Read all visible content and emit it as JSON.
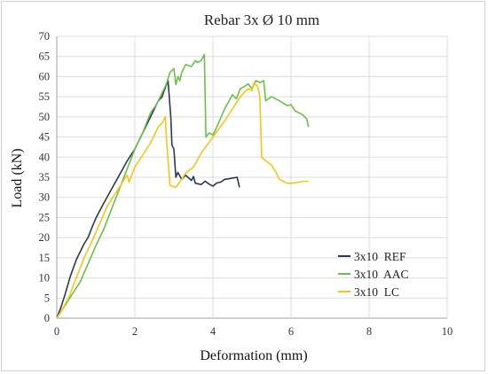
{
  "chart_data": {
    "type": "line",
    "title": "Rebar 3x Ø 10 mm",
    "xlabel": "Deformation (mm)",
    "ylabel": "Load (kN)",
    "xlim": [
      0,
      10
    ],
    "ylim": [
      0,
      70
    ],
    "xticks": [
      0,
      2,
      4,
      6,
      8,
      10
    ],
    "yticks": [
      0,
      5,
      10,
      15,
      20,
      25,
      30,
      35,
      40,
      45,
      50,
      55,
      60,
      65,
      70
    ],
    "grid": true,
    "legend": "bottom-right",
    "series": [
      {
        "name": "3x10  REF",
        "color": "#2b3a4f",
        "points": [
          [
            0,
            0
          ],
          [
            0.1,
            2.5
          ],
          [
            0.2,
            5.5
          ],
          [
            0.35,
            10.5
          ],
          [
            0.5,
            14.5
          ],
          [
            0.7,
            18.5
          ],
          [
            0.8,
            20
          ],
          [
            0.9,
            22.5
          ],
          [
            1.0,
            24.8
          ],
          [
            1.2,
            28.5
          ],
          [
            1.4,
            32
          ],
          [
            1.6,
            35.5
          ],
          [
            1.8,
            39
          ],
          [
            2.0,
            42
          ],
          [
            2.2,
            46
          ],
          [
            2.4,
            50
          ],
          [
            2.5,
            52
          ],
          [
            2.6,
            54
          ],
          [
            2.7,
            55
          ],
          [
            2.75,
            56.5
          ],
          [
            2.85,
            59
          ],
          [
            2.92,
            50
          ],
          [
            2.95,
            43
          ],
          [
            3.0,
            42
          ],
          [
            3.05,
            35
          ],
          [
            3.1,
            36.2
          ],
          [
            3.2,
            34.5
          ],
          [
            3.3,
            35.5
          ],
          [
            3.45,
            34.2
          ],
          [
            3.5,
            35.2
          ],
          [
            3.55,
            33.5
          ],
          [
            3.7,
            33.2
          ],
          [
            3.8,
            34
          ],
          [
            3.9,
            33.3
          ],
          [
            4.0,
            32.8
          ],
          [
            4.1,
            33.6
          ],
          [
            4.2,
            33.8
          ],
          [
            4.3,
            34.5
          ],
          [
            4.4,
            34.6
          ],
          [
            4.5,
            34.8
          ],
          [
            4.62,
            35
          ],
          [
            4.68,
            32.5
          ]
        ]
      },
      {
        "name": "3x10  AAC",
        "color": "#6cc04a",
        "points": [
          [
            0,
            0
          ],
          [
            0.2,
            3
          ],
          [
            0.4,
            6
          ],
          [
            0.6,
            9
          ],
          [
            0.8,
            13.5
          ],
          [
            1.0,
            18
          ],
          [
            1.2,
            22
          ],
          [
            1.4,
            27
          ],
          [
            1.6,
            32
          ],
          [
            1.8,
            37
          ],
          [
            2.0,
            42
          ],
          [
            2.2,
            46
          ],
          [
            2.4,
            51
          ],
          [
            2.55,
            53
          ],
          [
            2.7,
            56
          ],
          [
            2.8,
            58
          ],
          [
            2.9,
            61
          ],
          [
            3.0,
            62
          ],
          [
            3.05,
            58
          ],
          [
            3.1,
            60
          ],
          [
            3.15,
            59
          ],
          [
            3.2,
            61
          ],
          [
            3.3,
            63
          ],
          [
            3.45,
            62.5
          ],
          [
            3.55,
            64
          ],
          [
            3.6,
            63.5
          ],
          [
            3.7,
            64
          ],
          [
            3.78,
            65.5
          ],
          [
            3.82,
            45
          ],
          [
            3.9,
            46
          ],
          [
            4.0,
            45.5
          ],
          [
            4.1,
            47.5
          ],
          [
            4.3,
            52
          ],
          [
            4.5,
            55.5
          ],
          [
            4.6,
            54.5
          ],
          [
            4.7,
            57
          ],
          [
            4.8,
            57.5
          ],
          [
            4.9,
            58.2
          ],
          [
            5.0,
            57
          ],
          [
            5.1,
            59
          ],
          [
            5.2,
            58.5
          ],
          [
            5.3,
            59
          ],
          [
            5.35,
            54
          ],
          [
            5.5,
            55
          ],
          [
            5.7,
            54
          ],
          [
            5.9,
            52.8
          ],
          [
            6.0,
            53
          ],
          [
            6.1,
            51.5
          ],
          [
            6.3,
            50.5
          ],
          [
            6.4,
            49.5
          ],
          [
            6.45,
            47.5
          ]
        ]
      },
      {
        "name": "3x10  LC",
        "color": "#f5c518",
        "points": [
          [
            0,
            0
          ],
          [
            0.1,
            1.5
          ],
          [
            0.3,
            5
          ],
          [
            0.5,
            10
          ],
          [
            0.7,
            15
          ],
          [
            0.9,
            19
          ],
          [
            1.1,
            23.5
          ],
          [
            1.3,
            28
          ],
          [
            1.5,
            31
          ],
          [
            1.7,
            34
          ],
          [
            1.8,
            35.5
          ],
          [
            1.85,
            33.8
          ],
          [
            2.0,
            37.5
          ],
          [
            2.2,
            40.5
          ],
          [
            2.4,
            43.5
          ],
          [
            2.6,
            47.5
          ],
          [
            2.7,
            48.5
          ],
          [
            2.78,
            50
          ],
          [
            2.82,
            43
          ],
          [
            2.9,
            33
          ],
          [
            3.05,
            32.5
          ],
          [
            3.2,
            34.5
          ],
          [
            3.3,
            36
          ],
          [
            3.5,
            37.5
          ],
          [
            3.7,
            41
          ],
          [
            4.0,
            45
          ],
          [
            4.3,
            49
          ],
          [
            4.5,
            52
          ],
          [
            4.7,
            55
          ],
          [
            4.9,
            57
          ],
          [
            5.0,
            56.5
          ],
          [
            5.05,
            58.5
          ],
          [
            5.15,
            57.5
          ],
          [
            5.2,
            55
          ],
          [
            5.25,
            40
          ],
          [
            5.3,
            39.5
          ],
          [
            5.5,
            38
          ],
          [
            5.6,
            36.5
          ],
          [
            5.7,
            34.5
          ],
          [
            5.8,
            34
          ],
          [
            5.9,
            33.5
          ],
          [
            6.0,
            33.5
          ],
          [
            6.2,
            33.8
          ],
          [
            6.3,
            34
          ],
          [
            6.45,
            34
          ]
        ]
      }
    ]
  }
}
